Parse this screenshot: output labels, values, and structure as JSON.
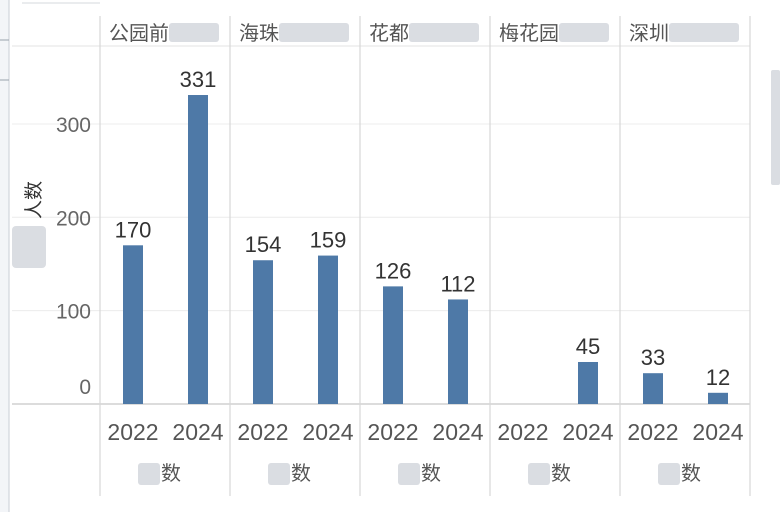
{
  "chart_data": {
    "type": "bar",
    "y_axis": {
      "label": "人数",
      "ylim": [
        0,
        360
      ],
      "ticks": [
        0,
        100,
        200,
        300
      ]
    },
    "panels": [
      {
        "header": "公园前",
        "footer": "数",
        "x": [
          "2022",
          "2024"
        ],
        "values": [
          170,
          331
        ]
      },
      {
        "header": "海珠",
        "footer": "数",
        "x": [
          "2022",
          "2024"
        ],
        "values": [
          154,
          159
        ]
      },
      {
        "header": "花都",
        "footer": "数",
        "x": [
          "2022",
          "2024"
        ],
        "values": [
          126,
          112
        ]
      },
      {
        "header": "梅花园",
        "footer": "数",
        "x": [
          "2022",
          "2024"
        ],
        "values": [
          null,
          45
        ]
      },
      {
        "header": "深圳",
        "footer": "数",
        "x": [
          "2022",
          "2024"
        ],
        "values": [
          33,
          12
        ]
      }
    ],
    "bar_color": "#4e79a7",
    "grid": true
  }
}
